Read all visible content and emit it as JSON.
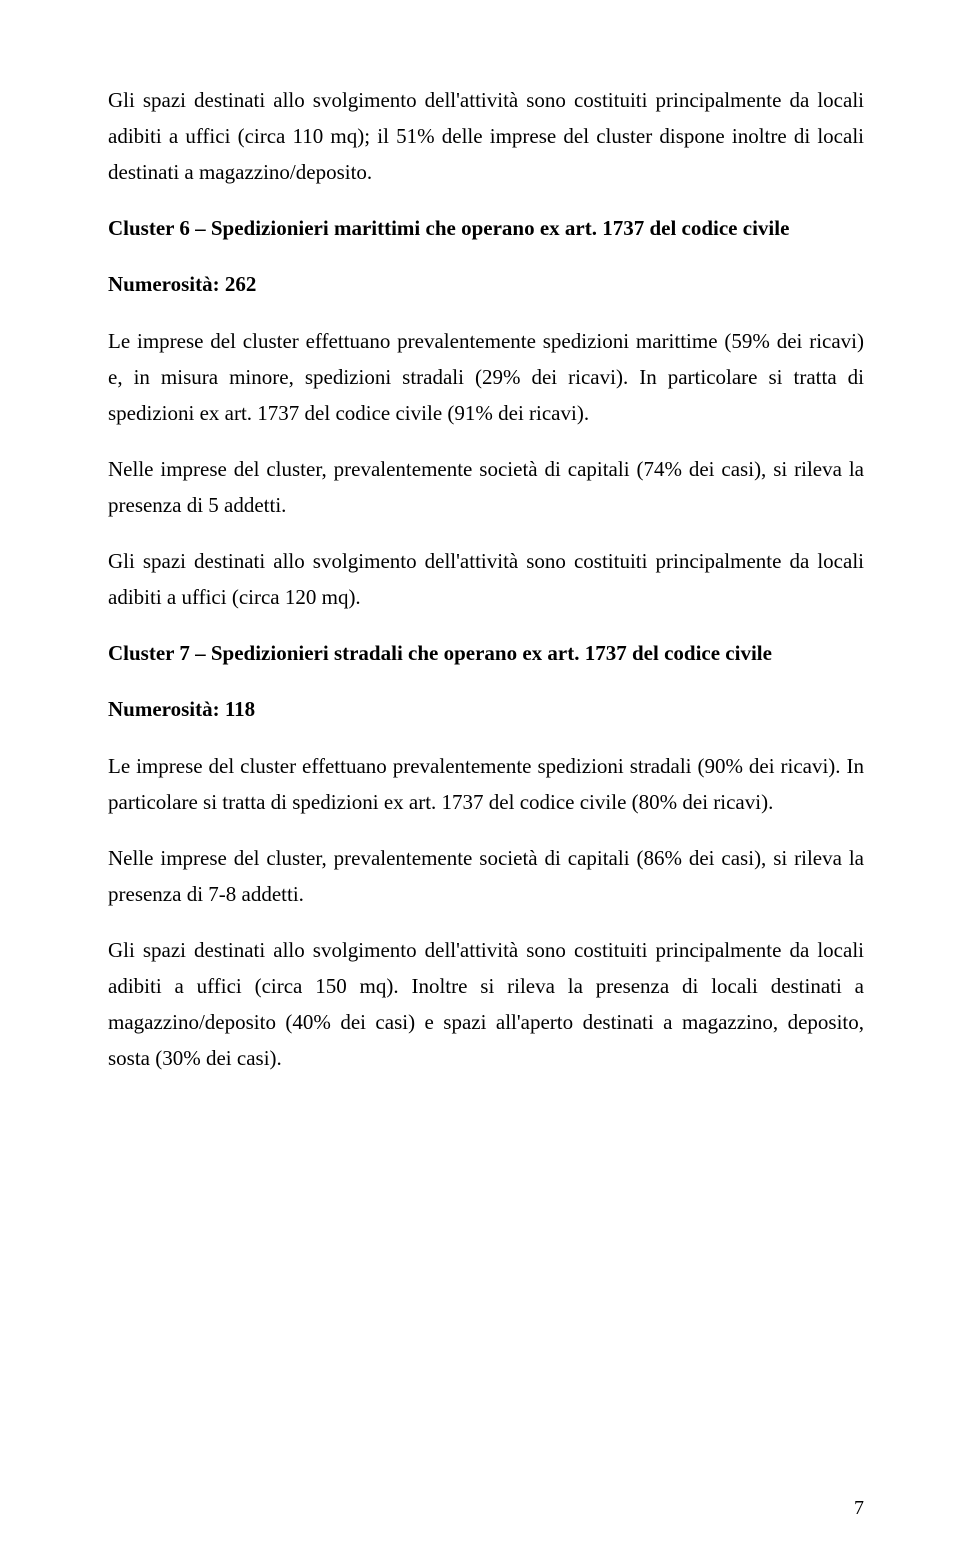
{
  "p1": "Gli spazi destinati allo svolgimento dell'attività sono costituiti principalmente da locali adibiti a uffici (circa 110 mq); il 51% delle imprese del cluster dispone inoltre di locali destinati a magazzino/deposito.",
  "h1": "Cluster 6 – Spedizionieri marittimi che operano ex art. 1737 del codice civile",
  "n1": "Numerosità: 262",
  "p2": "Le imprese del cluster effettuano prevalentemente spedizioni marittime (59% dei ricavi) e, in misura minore, spedizioni stradali (29% dei ricavi). In particolare si tratta di spedizioni ex art. 1737 del codice civile (91% dei ricavi).",
  "p3": "Nelle imprese del cluster, prevalentemente società di capitali (74% dei casi), si rileva la presenza di 5 addetti.",
  "p4": "Gli spazi destinati allo svolgimento dell'attività sono costituiti principalmente da locali adibiti a uffici (circa 120 mq).",
  "h2": "Cluster 7 – Spedizionieri stradali che operano ex art. 1737 del codice civile",
  "n2": "Numerosità: 118",
  "p5": "Le imprese del cluster effettuano prevalentemente spedizioni stradali (90% dei ricavi). In particolare si tratta di spedizioni ex art. 1737 del codice civile (80% dei ricavi).",
  "p6": "Nelle imprese del cluster, prevalentemente società di capitali (86% dei casi), si rileva la presenza di 7-8 addetti.",
  "p7": "Gli spazi destinati allo svolgimento dell'attività sono costituiti principalmente da locali adibiti a uffici (circa 150 mq). Inoltre si rileva la presenza di locali destinati a magazzino/deposito (40% dei casi) e spazi all'aperto destinati a magazzino, deposito, sosta (30% dei casi).",
  "pagenum": "7"
}
